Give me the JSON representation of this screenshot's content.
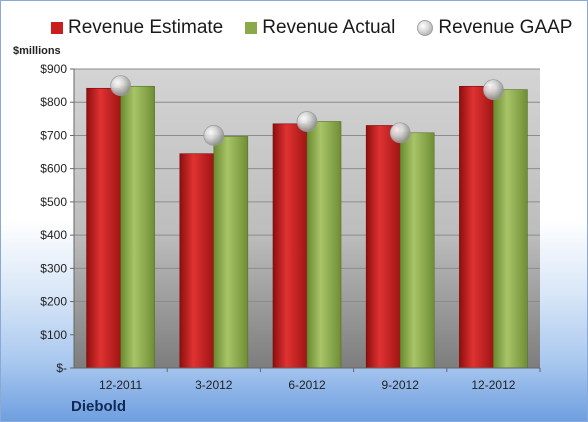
{
  "colors": {
    "estimate": "#c81e1e",
    "actual": "#8aaa4a",
    "gaap": "#c8c8c8",
    "plot_bg": "#c9c9c9"
  },
  "unit_label": "$millions",
  "company": "Diebold",
  "chart_data": {
    "type": "bar",
    "categories": [
      "12-2011",
      "3-2012",
      "6-2012",
      "9-2012",
      "12-2012"
    ],
    "series": [
      {
        "name": "Revenue Estimate",
        "values": [
          842,
          645,
          735,
          730,
          848
        ]
      },
      {
        "name": "Revenue Actual",
        "values": [
          848,
          697,
          742,
          708,
          838
        ]
      },
      {
        "name": "Revenue GAAP",
        "type": "scatter",
        "values": [
          850,
          700,
          742,
          708,
          838
        ]
      }
    ],
    "ylim": [
      0,
      900
    ],
    "ytick_values": [
      0,
      100,
      200,
      300,
      400,
      500,
      600,
      700,
      800,
      900
    ],
    "ytick_labels": [
      "$-",
      "$100",
      "$200",
      "$300",
      "$400",
      "$500",
      "$600",
      "$700",
      "$800",
      "$900"
    ],
    "grid": true,
    "legend_position": "top"
  }
}
